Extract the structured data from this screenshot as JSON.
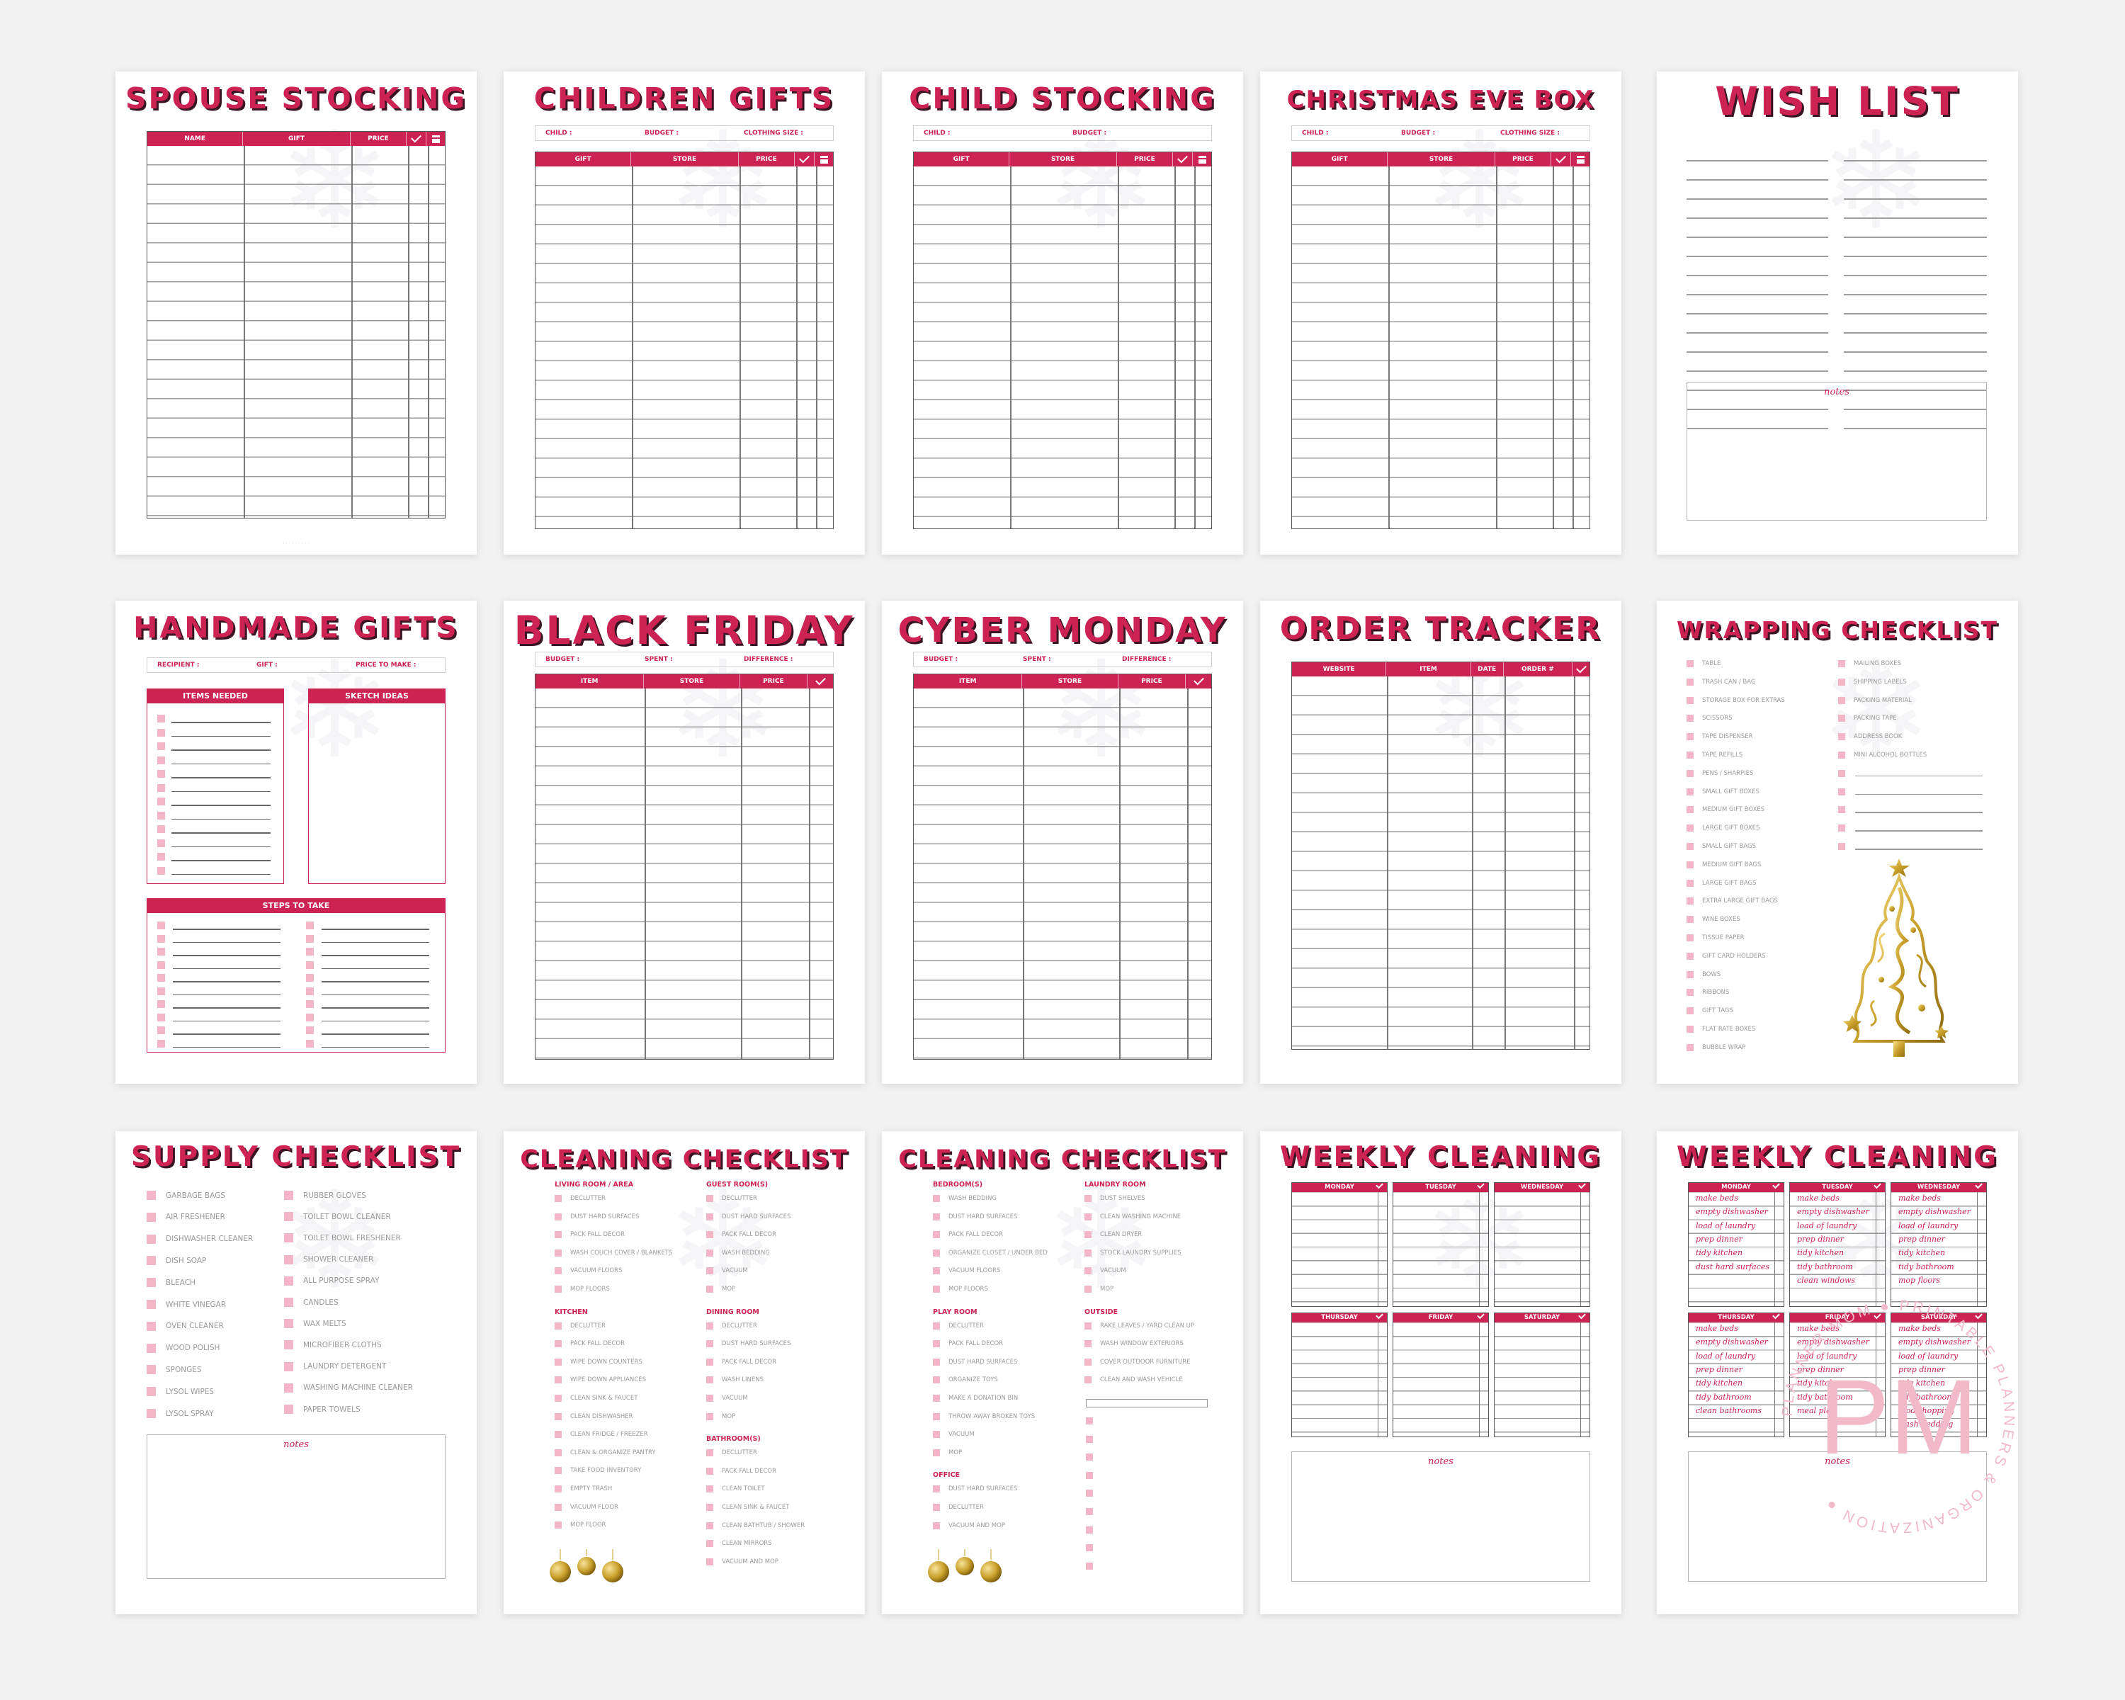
{
  "brand": {
    "accent": "#cc2353",
    "pink_box": "#f4b6c7",
    "gold": "#c9a02b",
    "logo_text": "PM",
    "logo_ring_text": "PLANNER MOM ● PRINTABLE PLANNERS & ORGANIZATION ●"
  },
  "spouse": {
    "title": "SPOUSE STOCKING",
    "cols": [
      "NAME",
      "GIFT",
      "PRICE"
    ]
  },
  "children": {
    "title": "CHILDREN GIFTS",
    "info": [
      "CHILD :",
      "BUDGET :",
      "CLOTHING SIZE :"
    ],
    "cols": [
      "GIFT",
      "STORE",
      "PRICE"
    ]
  },
  "child": {
    "title": "CHILD STOCKING",
    "info": [
      "CHILD :",
      "BUDGET :"
    ],
    "cols": [
      "GIFT",
      "STORE",
      "PRICE"
    ]
  },
  "eve": {
    "title": "CHRISTMAS EVE BOX",
    "info": [
      "CHILD :",
      "BUDGET :",
      "CLOTHING SIZE :"
    ],
    "cols": [
      "GIFT",
      "STORE",
      "PRICE"
    ]
  },
  "wish": {
    "title": "WISH LIST",
    "notes": "notes"
  },
  "handmade": {
    "title": "HANDMADE GIFTS",
    "info": [
      "RECIPIENT :",
      "GIFT :",
      "PRICE TO MAKE :"
    ],
    "items": "ITEMS NEEDED",
    "sketch": "SKETCH IDEAS",
    "steps": "STEPS TO TAKE"
  },
  "blackfriday": {
    "title": "BLACK FRIDAY",
    "info": [
      "BUDGET :",
      "SPENT :",
      "DIFFERENCE :"
    ],
    "cols": [
      "ITEM",
      "STORE",
      "PRICE"
    ]
  },
  "cyber": {
    "title": "CYBER MONDAY",
    "info": [
      "BUDGET :",
      "SPENT :",
      "DIFFERENCE :"
    ],
    "cols": [
      "ITEM",
      "STORE",
      "PRICE"
    ]
  },
  "order": {
    "title": "ORDER TRACKER",
    "cols": [
      "WEBSITE",
      "ITEM",
      "DATE",
      "ORDER #"
    ]
  },
  "wrapping": {
    "title": "WRAPPING CHECKLIST",
    "col1": [
      "TABLE",
      "TRASH CAN / BAG",
      "STORAGE BOX FOR EXTRAS",
      "SCISSORS",
      "TAPE DISPENSER",
      "TAPE REFILLS",
      "PENS / SHARPIES",
      "SMALL GIFT BOXES",
      "MEDIUM GIFT BOXES",
      "LARGE GIFT BOXES",
      "SMALL GIFT BAGS",
      "MEDIUM GIFT BAGS",
      "LARGE GIFT BAGS",
      "EXTRA LARGE GIFT BAGS",
      "WINE BOXES",
      "TISSUE PAPER",
      "GIFT CARD HOLDERS",
      "BOWS",
      "RIBBONS",
      "GIFT TAGS",
      "FLAT RATE BOXES",
      "BUBBLE WRAP"
    ],
    "col2": [
      "MAILING BOXES",
      "SHIPPING LABELS",
      "PACKING MATERIAL",
      "PACKING TAPE",
      "ADDRESS BOOK",
      "MINI ALCOHOL BOTTLES"
    ]
  },
  "supply": {
    "title": "SUPPLY CHECKLIST",
    "notes": "notes",
    "col1": [
      "GARBAGE BAGS",
      "AIR FRESHENER",
      "DISHWASHER CLEANER",
      "DISH SOAP",
      "BLEACH",
      "WHITE VINEGAR",
      "OVEN CLEANER",
      "WOOD POLISH",
      "SPONGES",
      "LYSOL WIPES",
      "LYSOL SPRAY"
    ],
    "col2": [
      "RUBBER GLOVES",
      "TOILET BOWL CLEANER",
      "TOILET BOWL FRESHENER",
      "SHOWER CLEANER",
      "ALL PURPOSE SPRAY",
      "CANDLES",
      "WAX MELTS",
      "MICROFIBER CLOTHS",
      "LAUNDRY DETERGENT",
      "WASHING MACHINE CLEANER",
      "PAPER TOWELS"
    ]
  },
  "cleaning1": {
    "title": "CLEANING CHECKLIST",
    "living": "LIVING ROOM / AREA",
    "living_items": [
      "DECLUTTER",
      "DUST HARD SURFACES",
      "PACK FALL DECOR",
      "WASH COUCH COVER / BLANKETS",
      "VACUUM FLOORS",
      "MOP FLOORS"
    ],
    "kitchen": "KITCHEN",
    "kitchen_items": [
      "DECLUTTER",
      "PACK FALL DECOR",
      "WIPE DOWN COUNTERS",
      "WIPE DOWN APPLIANCES",
      "CLEAN SINK & FAUCET",
      "CLEAN DISHWASHER",
      "CLEAN FRIDGE / FREEZER",
      "CLEAN & ORGANIZE PANTRY",
      "TAKE FOOD INVENTORY",
      "EMPTY TRASH",
      "VACUUM FLOOR",
      "MOP FLOOR"
    ],
    "guest": "GUEST ROOM(S)",
    "guest_items": [
      "DECLUTTER",
      "DUST HARD SURFACES",
      "PACK FALL DECOR",
      "WASH BEDDING",
      "VACUUM",
      "MOP"
    ],
    "dining": "DINING ROOM",
    "dining_items": [
      "DECLUTTER",
      "DUST HARD SURFACES",
      "PACK FALL DECOR",
      "WASH LINENS",
      "VACUUM",
      "MOP"
    ],
    "bath": "BATHROOM(S)",
    "bath_items": [
      "DECLUTTER",
      "PACK FALL DECOR",
      "CLEAN TOILET",
      "CLEAN SINK & FAUCET",
      "CLEAN BATHTUB / SHOWER",
      "CLEAN MIRRORS",
      "VACUUM AND MOP"
    ]
  },
  "cleaning2": {
    "title": "CLEANING CHECKLIST",
    "bedroom": "BEDROOM(S)",
    "bedroom_items": [
      "WASH BEDDING",
      "DUST HARD SURFACES",
      "PACK FALL DECOR",
      "ORGANIZE CLOSET / UNDER BED",
      "VACUUM FLOORS",
      "MOP FLOORS"
    ],
    "play": "PLAY ROOM",
    "play_items": [
      "DECLUTTER",
      "PACK FALL DECOR",
      "DUST HARD SURFACES",
      "ORGANIZE TOYS",
      "MAKE A DONATION BIN",
      "THROW AWAY BROKEN TOYS",
      "VACUUM",
      "MOP"
    ],
    "office": "OFFICE",
    "office_items": [
      "DUST HARD SURFACES",
      "DECLUTTER",
      "VACUUM AND MOP"
    ],
    "laundry": "LAUNDRY ROOM",
    "laundry_items": [
      "DUST SHELVES",
      "CLEAN WASHING MACHINE",
      "CLEAN DRYER",
      "STOCK LAUNDRY SUPPLIES",
      "VACUUM",
      "MOP"
    ],
    "outside": "OUTSIDE",
    "outside_items": [
      "RAKE LEAVES / YARD CLEAN UP",
      "WASH WINDOW EXTERIORS",
      "COVER OUTDOOR FURNITURE",
      "CLEAN AND WASH VEHICLE"
    ]
  },
  "weekly1": {
    "title": "WEEKLY CLEANING",
    "days": [
      "MONDAY",
      "TUESDAY",
      "WEDNESDAY",
      "THURSDAY",
      "FRIDAY",
      "SATURDAY"
    ],
    "notes": "notes"
  },
  "weekly2": {
    "title": "WEEKLY CLEANING",
    "days": [
      "MONDAY",
      "TUESDAY",
      "WEDNESDAY",
      "THURSDAY",
      "FRIDAY",
      "SATURDAY"
    ],
    "notes": "notes",
    "tasks": [
      [
        "make beds",
        "empty dishwasher",
        "load of laundry",
        "prep dinner",
        "tidy kitchen",
        "dust hard surfaces"
      ],
      [
        "make beds",
        "empty dishwasher",
        "load of laundry",
        "prep dinner",
        "tidy kitchen",
        "tidy bathroom",
        "clean windows"
      ],
      [
        "make beds",
        "empty dishwasher",
        "load of laundry",
        "prep dinner",
        "tidy kitchen",
        "tidy bathroom",
        "mop floors"
      ],
      [
        "make beds",
        "empty dishwasher",
        "load of laundry",
        "prep dinner",
        "tidy kitchen",
        "tidy bathroom",
        "clean bathrooms"
      ],
      [
        "make beds",
        "empty dishwasher",
        "load of laundry",
        "prep dinner",
        "tidy kitchen",
        "tidy bathroom",
        "meal plan"
      ],
      [
        "make beds",
        "empty dishwasher",
        "load of laundry",
        "prep dinner",
        "tidy kitchen",
        "tidy bathroom",
        "food shopping",
        "wash bedding"
      ]
    ]
  }
}
